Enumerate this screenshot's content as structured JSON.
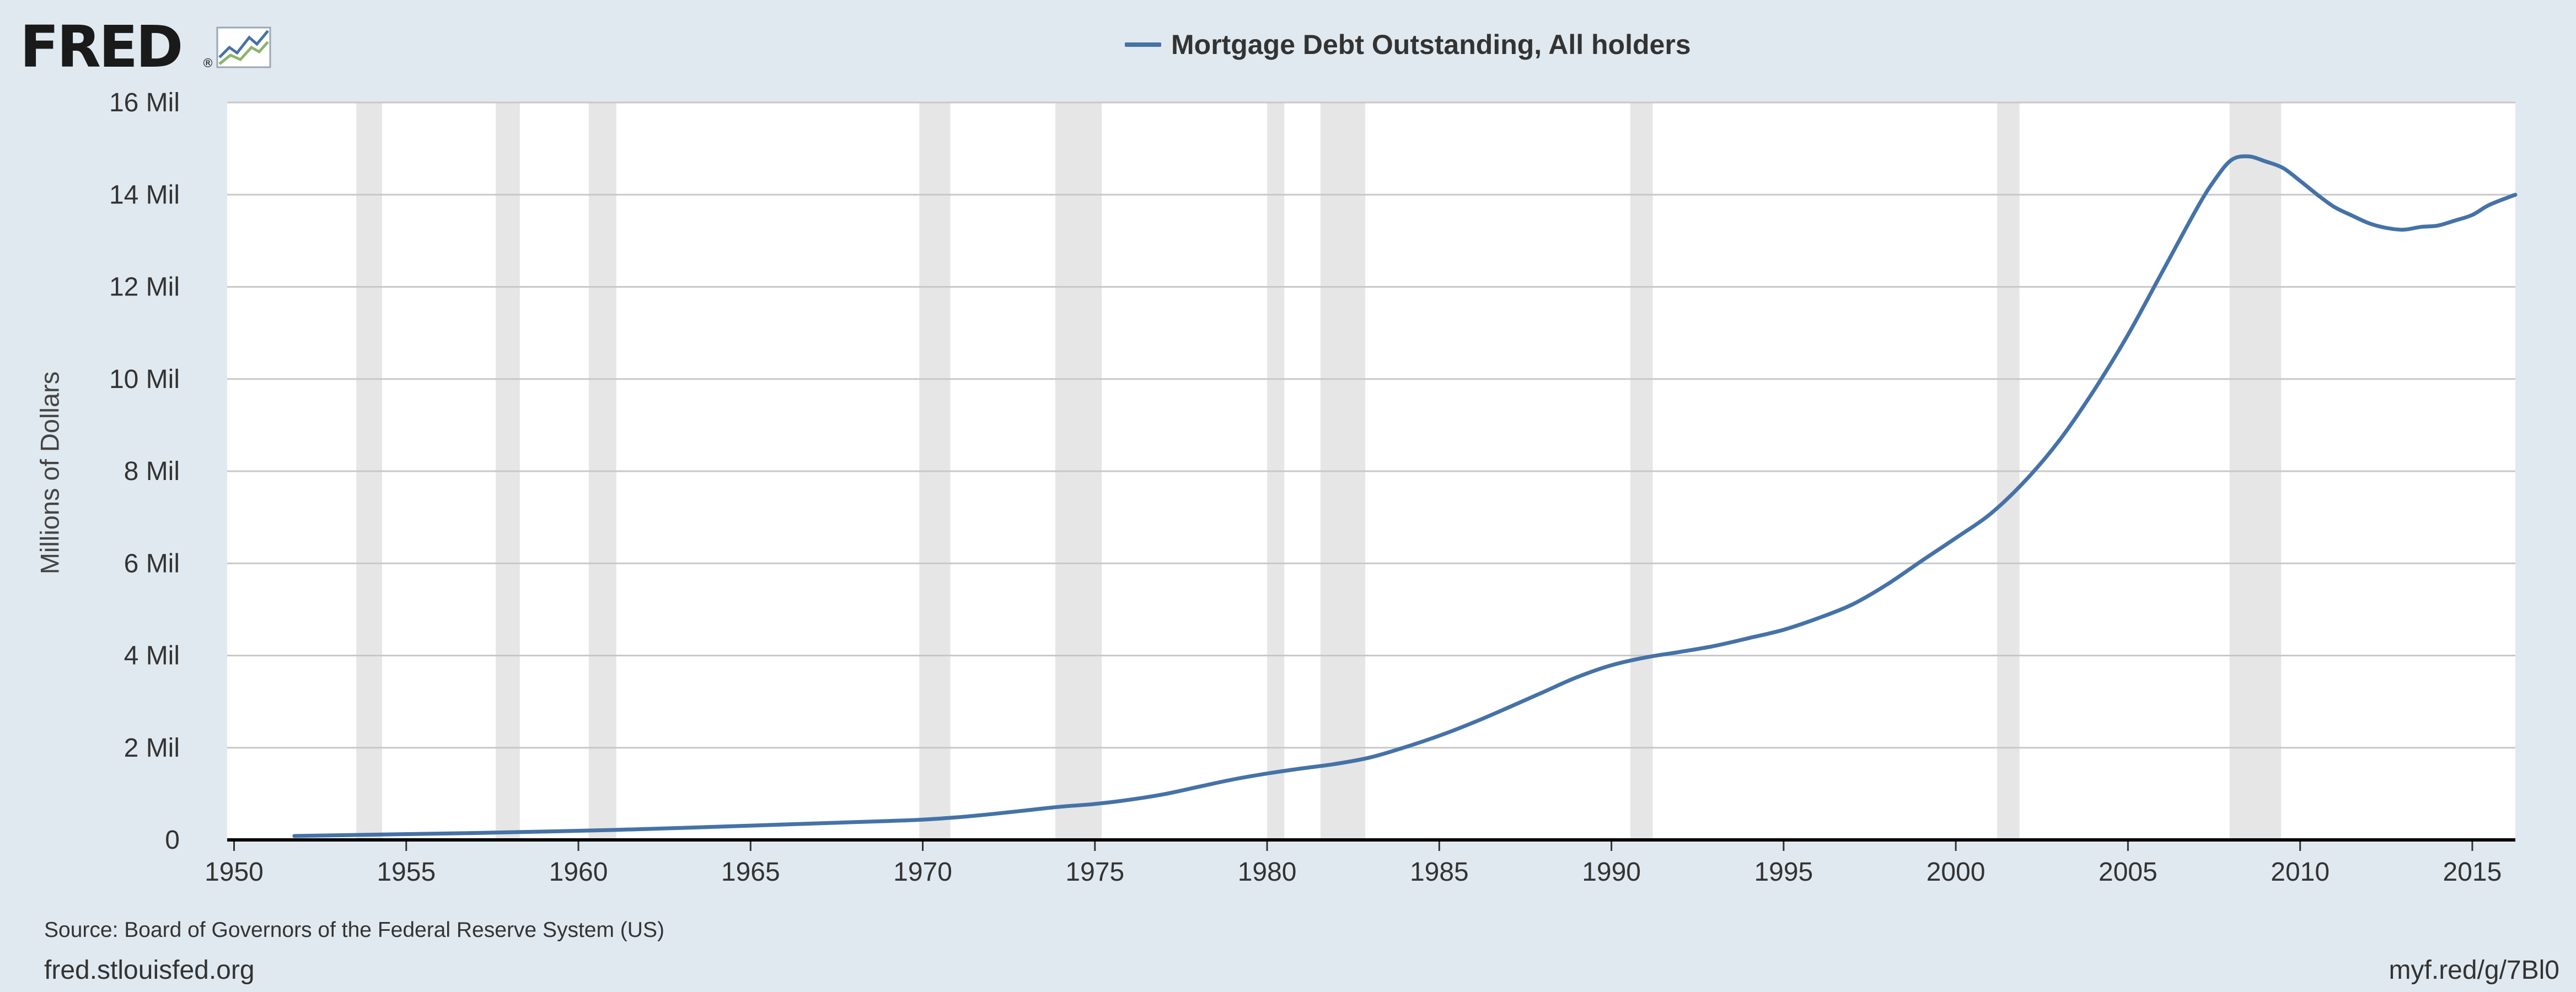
{
  "logo": {
    "text": "FRED",
    "registered": "®"
  },
  "chart_data": {
    "type": "line",
    "title": "",
    "xlabel": "",
    "ylabel": "Millions of Dollars",
    "x_range": [
      1949.8,
      2016.25
    ],
    "ylim": [
      0,
      16000000
    ],
    "grid": true,
    "legend_position": "top-center",
    "y_ticks": [
      {
        "value": 0,
        "label": "0"
      },
      {
        "value": 2000000,
        "label": "2 Mil"
      },
      {
        "value": 4000000,
        "label": "4 Mil"
      },
      {
        "value": 6000000,
        "label": "6 Mil"
      },
      {
        "value": 8000000,
        "label": "8 Mil"
      },
      {
        "value": 10000000,
        "label": "10 Mil"
      },
      {
        "value": 12000000,
        "label": "12 Mil"
      },
      {
        "value": 14000000,
        "label": "14 Mil"
      },
      {
        "value": 16000000,
        "label": "16 Mil"
      }
    ],
    "x_ticks": [
      {
        "value": 1950,
        "label": "1950"
      },
      {
        "value": 1955,
        "label": "1955"
      },
      {
        "value": 1960,
        "label": "1960"
      },
      {
        "value": 1965,
        "label": "1965"
      },
      {
        "value": 1970,
        "label": "1970"
      },
      {
        "value": 1975,
        "label": "1975"
      },
      {
        "value": 1980,
        "label": "1980"
      },
      {
        "value": 1985,
        "label": "1985"
      },
      {
        "value": 1990,
        "label": "1990"
      },
      {
        "value": 1995,
        "label": "1995"
      },
      {
        "value": 2000,
        "label": "2000"
      },
      {
        "value": 2005,
        "label": "2005"
      },
      {
        "value": 2010,
        "label": "2010"
      },
      {
        "value": 2015,
        "label": "2015"
      }
    ],
    "recessions": [
      [
        1953.55,
        1954.3
      ],
      [
        1957.6,
        1958.3
      ],
      [
        1960.3,
        1961.1
      ],
      [
        1969.9,
        1970.8
      ],
      [
        1973.85,
        1975.2
      ],
      [
        1980.0,
        1980.5
      ],
      [
        1981.55,
        1982.85
      ],
      [
        1990.55,
        1991.2
      ],
      [
        2001.2,
        2001.85
      ],
      [
        2007.95,
        2009.45
      ]
    ],
    "series": [
      {
        "name": "Mortgage Debt Outstanding, All holders",
        "color": "#4572a7",
        "points": [
          [
            1951.75,
            85000
          ],
          [
            1953,
            100000
          ],
          [
            1955,
            125000
          ],
          [
            1957,
            150000
          ],
          [
            1959,
            180000
          ],
          [
            1961,
            215000
          ],
          [
            1963,
            260000
          ],
          [
            1965,
            310000
          ],
          [
            1967,
            360000
          ],
          [
            1969,
            410000
          ],
          [
            1970,
            440000
          ],
          [
            1971,
            490000
          ],
          [
            1972,
            560000
          ],
          [
            1973,
            640000
          ],
          [
            1974,
            720000
          ],
          [
            1975,
            780000
          ],
          [
            1976,
            870000
          ],
          [
            1977,
            990000
          ],
          [
            1978,
            1150000
          ],
          [
            1979,
            1310000
          ],
          [
            1980,
            1440000
          ],
          [
            1981,
            1550000
          ],
          [
            1982,
            1650000
          ],
          [
            1983,
            1790000
          ],
          [
            1984,
            2010000
          ],
          [
            1985,
            2260000
          ],
          [
            1986,
            2550000
          ],
          [
            1987,
            2870000
          ],
          [
            1988,
            3200000
          ],
          [
            1989,
            3530000
          ],
          [
            1990,
            3790000
          ],
          [
            1991,
            3960000
          ],
          [
            1992,
            4080000
          ],
          [
            1993,
            4210000
          ],
          [
            1994,
            4380000
          ],
          [
            1995,
            4560000
          ],
          [
            1996,
            4810000
          ],
          [
            1997,
            5110000
          ],
          [
            1998,
            5540000
          ],
          [
            1999,
            6050000
          ],
          [
            2000,
            6550000
          ],
          [
            2001,
            7070000
          ],
          [
            2002,
            7780000
          ],
          [
            2003,
            8660000
          ],
          [
            2004,
            9740000
          ],
          [
            2005,
            10960000
          ],
          [
            2006,
            12330000
          ],
          [
            2007,
            13700000
          ],
          [
            2007.5,
            14300000
          ],
          [
            2008,
            14750000
          ],
          [
            2008.5,
            14830000
          ],
          [
            2009,
            14720000
          ],
          [
            2009.5,
            14580000
          ],
          [
            2010,
            14300000
          ],
          [
            2010.5,
            14000000
          ],
          [
            2011,
            13730000
          ],
          [
            2011.5,
            13550000
          ],
          [
            2012,
            13380000
          ],
          [
            2012.5,
            13280000
          ],
          [
            2013,
            13240000
          ],
          [
            2013.5,
            13300000
          ],
          [
            2014,
            13330000
          ],
          [
            2014.5,
            13440000
          ],
          [
            2015,
            13560000
          ],
          [
            2015.5,
            13780000
          ],
          [
            2016.25,
            14000000
          ]
        ]
      }
    ]
  },
  "footer": {
    "source": "Source: Board of Governors of the Federal Reserve System (US)",
    "site": "fred.stlouisfed.org",
    "shortlink": "myf.red/g/7Bl0"
  }
}
